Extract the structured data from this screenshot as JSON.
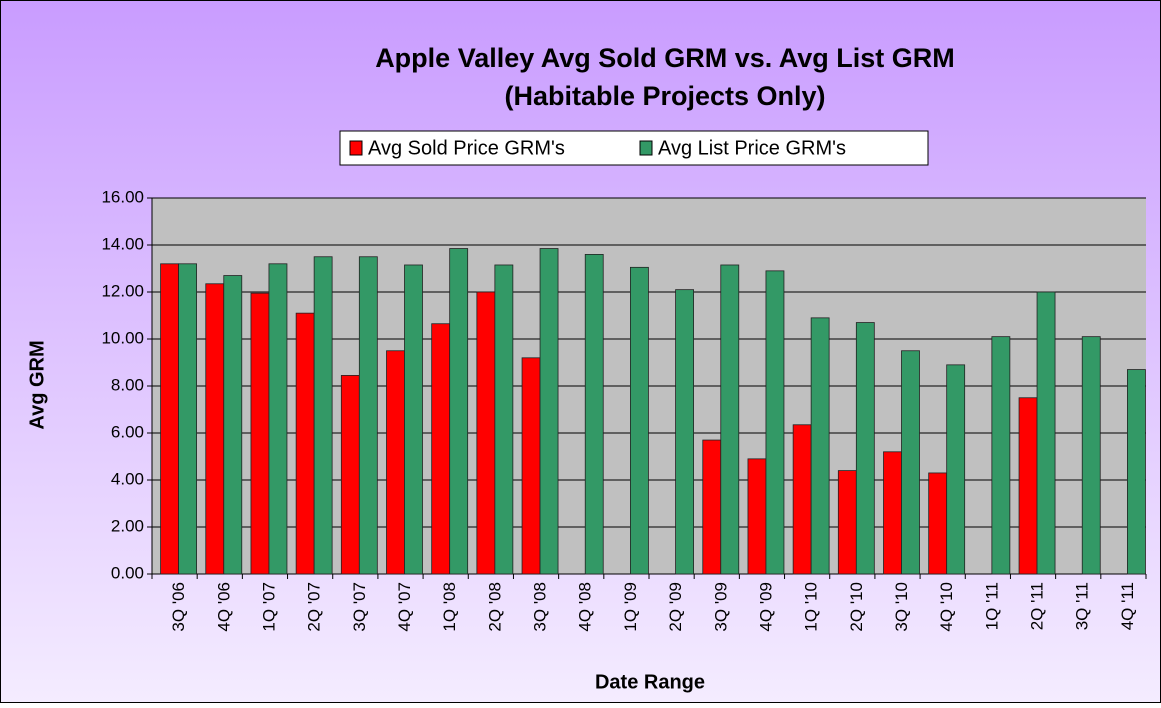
{
  "chart_data": {
    "type": "bar",
    "title": "Apple Valley Avg Sold GRM vs. Avg List GRM",
    "subtitle": "(Habitable Projects Only)",
    "x_label": "Date Range",
    "y_label": "Avg GRM",
    "categories": [
      "3Q '06",
      "4Q '06",
      "1Q '07",
      "2Q '07",
      "3Q '07",
      "4Q '07",
      "1Q '08",
      "2Q '08",
      "3Q '08",
      "4Q '08",
      "1Q '09",
      "2Q '09",
      "3Q '09",
      "4Q '09",
      "1Q '10",
      "2Q '10",
      "3Q '10",
      "4Q '10",
      "1Q '11",
      "2Q '11",
      "3Q '11",
      "4Q '11"
    ],
    "series": [
      {
        "name": "Avg Sold Price GRM's",
        "color": "#ff0000",
        "values": [
          13.2,
          12.35,
          11.95,
          11.1,
          8.45,
          9.5,
          10.65,
          12.0,
          9.2,
          null,
          null,
          null,
          5.7,
          4.9,
          6.35,
          4.4,
          5.2,
          4.3,
          null,
          7.5,
          null,
          null
        ]
      },
      {
        "name": "Avg List Price GRM's",
        "color": "#339966",
        "values": [
          13.2,
          12.7,
          13.2,
          13.5,
          13.5,
          13.15,
          13.85,
          13.15,
          13.85,
          13.6,
          13.05,
          12.1,
          13.15,
          12.9,
          10.9,
          10.7,
          9.5,
          8.9,
          10.1,
          12.0,
          10.1,
          8.7
        ]
      }
    ],
    "ylim": [
      0,
      16
    ],
    "yticks": [
      {
        "value": 0,
        "label": "0.00"
      },
      {
        "value": 2,
        "label": "2.00"
      },
      {
        "value": 4,
        "label": "4.00"
      },
      {
        "value": 6,
        "label": "6.00"
      },
      {
        "value": 8,
        "label": "8.00"
      },
      {
        "value": 10,
        "label": "10.00"
      },
      {
        "value": 12,
        "label": "12.00"
      },
      {
        "value": 14,
        "label": "14.00"
      },
      {
        "value": 16,
        "label": "16.00"
      }
    ],
    "grid": true,
    "legend": "top"
  }
}
